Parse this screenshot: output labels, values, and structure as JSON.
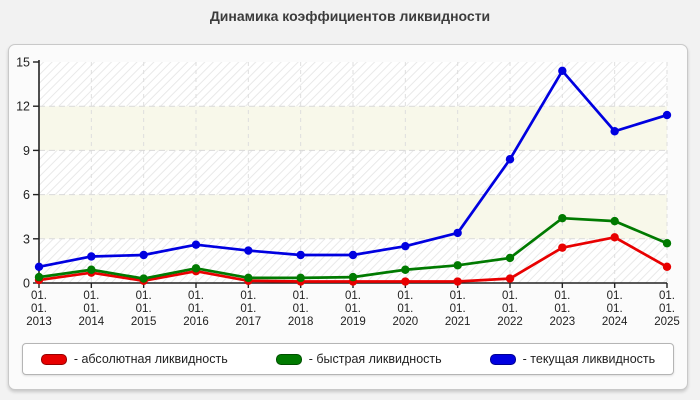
{
  "page": {
    "title": "Динамика коэффициентов ликвидности"
  },
  "chart_data": {
    "type": "line",
    "title": "Динамика коэффициентов ликвидности",
    "categories": [
      "01.01.2013",
      "01.01.2014",
      "01.01.2015",
      "01.01.2016",
      "01.01.2017",
      "01.01.2018",
      "01.01.2019",
      "01.01.2020",
      "01.01.2021",
      "01.01.2022",
      "01.01.2023",
      "01.01.2024",
      "01.01.2025"
    ],
    "series": [
      {
        "name": "абсолютная ликвидность",
        "color": "#e80000",
        "values": [
          0.2,
          0.7,
          0.15,
          0.8,
          0.15,
          0.1,
          0.1,
          0.1,
          0.1,
          0.3,
          2.4,
          3.1,
          1.1
        ]
      },
      {
        "name": "быстрая ликвидность",
        "color": "#007a00",
        "values": [
          0.4,
          0.9,
          0.3,
          1.0,
          0.35,
          0.35,
          0.4,
          0.9,
          1.2,
          1.7,
          4.4,
          4.2,
          2.7
        ]
      },
      {
        "name": "текущая ликвидность",
        "color": "#0000e0",
        "values": [
          1.1,
          1.8,
          1.9,
          2.6,
          2.2,
          1.9,
          1.9,
          2.5,
          3.4,
          8.4,
          14.4,
          10.3,
          11.4
        ]
      }
    ],
    "xlabel": "",
    "ylabel": "",
    "ylim": [
      0,
      15
    ],
    "yticks": [
      0,
      3,
      6,
      9,
      12,
      15
    ],
    "grid": true,
    "grid_style": "dashed",
    "band_colors": {
      "plain": "#ffffff",
      "cream": "#f8f8ea",
      "hatch_line": "#e9e9e9"
    },
    "axis_color": "#222222",
    "gridline_color": "#d9d9d9",
    "tick_label_color": "#222222",
    "legend_position": "bottom"
  },
  "legend": {
    "items": [
      {
        "label": "- абсолютная ликвидность",
        "color": "#e80000"
      },
      {
        "label": "- быстрая ликвидность",
        "color": "#007a00"
      },
      {
        "label": "- текущая ликвидность",
        "color": "#0000e0"
      }
    ]
  }
}
